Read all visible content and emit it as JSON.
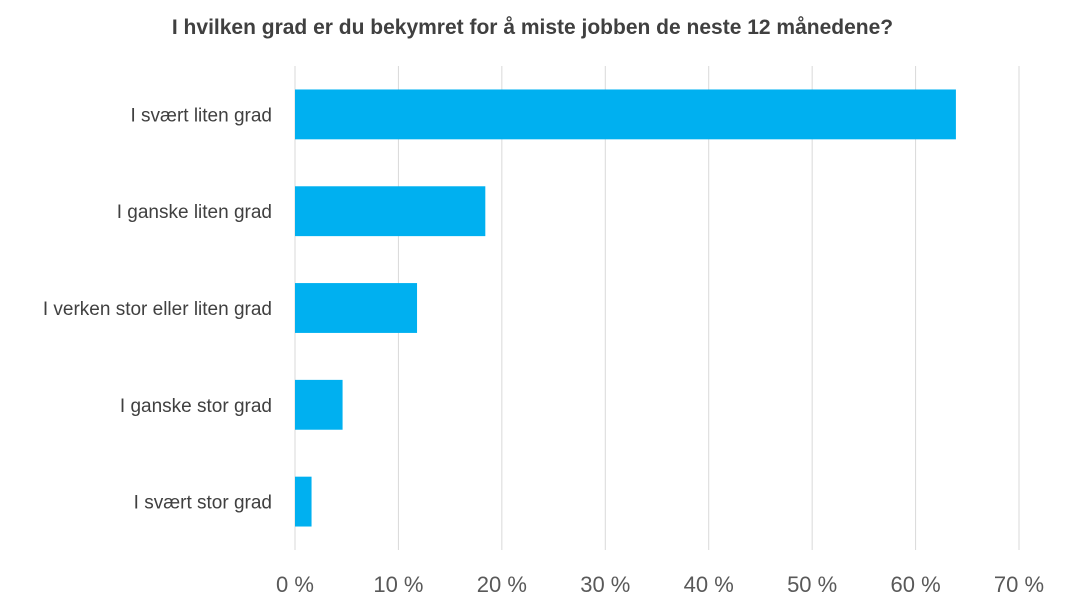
{
  "chart_data": {
    "type": "bar",
    "orientation": "horizontal",
    "title": "I hvilken grad er du bekymret for å miste jobben de neste 12 månedene?",
    "xlabel": "",
    "ylabel": "",
    "categories": [
      "I svært liten grad",
      "I ganske liten grad",
      "I verken stor eller liten grad",
      "I ganske stor grad",
      "I svært stor grad"
    ],
    "values": [
      63.9,
      18.4,
      11.8,
      4.6,
      1.6
    ],
    "unit": "%",
    "xlim": [
      0,
      70
    ],
    "xticks": [
      0,
      10,
      20,
      30,
      40,
      50,
      60,
      70
    ],
    "xtick_labels": [
      "0 %",
      "10 %",
      "20 %",
      "30 %",
      "40 %",
      "50 %",
      "60 %",
      "70 %"
    ],
    "grid": "vertical",
    "legend": "none",
    "bar_color": "#00B0F0",
    "grid_color": "#D9D9D9"
  }
}
